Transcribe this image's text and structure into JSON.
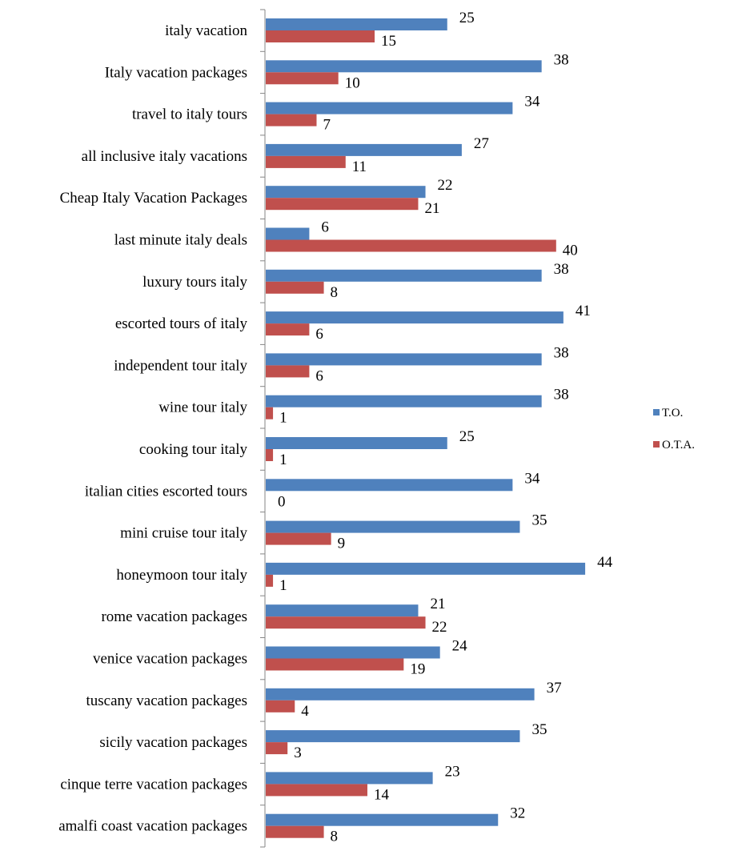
{
  "chart_data": {
    "type": "bar",
    "orientation": "horizontal",
    "categories": [
      "italy vacation",
      "Italy vacation packages",
      "travel to italy tours",
      "all inclusive italy vacations",
      "Cheap Italy Vacation Packages",
      "last minute italy deals",
      "luxury tours italy",
      "escorted tours of italy",
      "independent tour italy",
      "wine tour italy",
      "cooking tour italy",
      "italian cities escorted tours",
      "mini cruise tour italy",
      "honeymoon tour italy",
      "rome vacation packages",
      "venice vacation packages",
      "tuscany vacation packages",
      "sicily vacation packages",
      "cinque terre vacation packages",
      "amalfi coast vacation packages"
    ],
    "series": [
      {
        "name": "T.O.",
        "color": "#4F81BD",
        "values": [
          25,
          38,
          34,
          27,
          22,
          6,
          38,
          41,
          38,
          38,
          25,
          34,
          35,
          44,
          21,
          24,
          37,
          35,
          23,
          32
        ]
      },
      {
        "name": "O.T.A.",
        "color": "#C0504D",
        "values": [
          15,
          10,
          7,
          11,
          21,
          40,
          8,
          6,
          6,
          1,
          1,
          0,
          9,
          1,
          22,
          19,
          4,
          3,
          14,
          8
        ]
      }
    ],
    "xlim": [
      0,
      44
    ],
    "data_labels": true,
    "grid": false,
    "legend": {
      "position": "right"
    }
  }
}
